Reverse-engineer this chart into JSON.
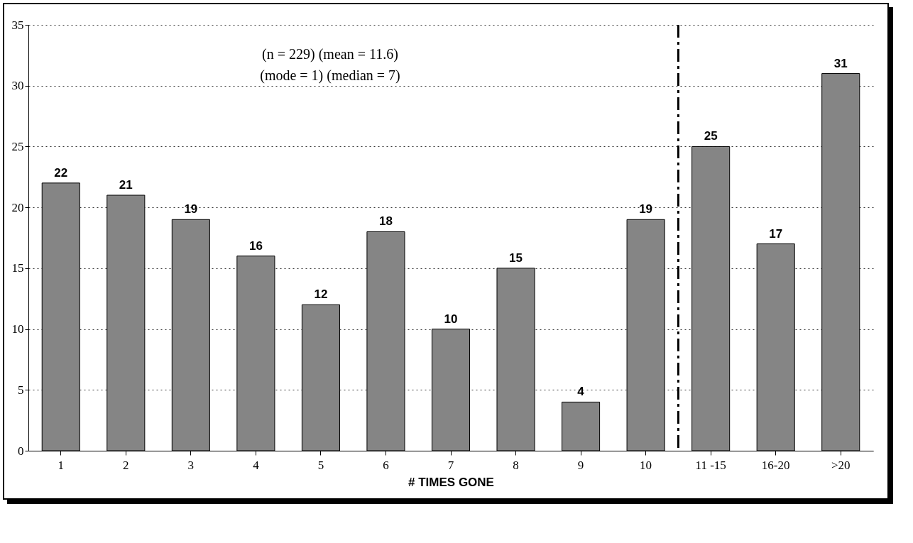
{
  "chart_data": {
    "type": "bar",
    "xlabel": "# TIMES GONE",
    "categories": [
      "1",
      "2",
      "3",
      "4",
      "5",
      "6",
      "7",
      "8",
      "9",
      "10",
      "11 -15",
      "16-20",
      ">20"
    ],
    "values": [
      22,
      21,
      19,
      16,
      12,
      18,
      10,
      15,
      4,
      19,
      25,
      17,
      31
    ],
    "color": "#858585",
    "ylim": [
      0,
      35
    ],
    "yticks": [
      0,
      5,
      10,
      15,
      20,
      25,
      30,
      35
    ],
    "grid": "y",
    "data_labels": true,
    "ref_lines": [
      {
        "axis": "x",
        "value": "11 -15",
        "line_style": "dashed",
        "color": "#000000"
      }
    ],
    "annotations": [
      "(n = 229) (mean = 11.6)",
      "(mode = 1) (median = 7)"
    ]
  }
}
